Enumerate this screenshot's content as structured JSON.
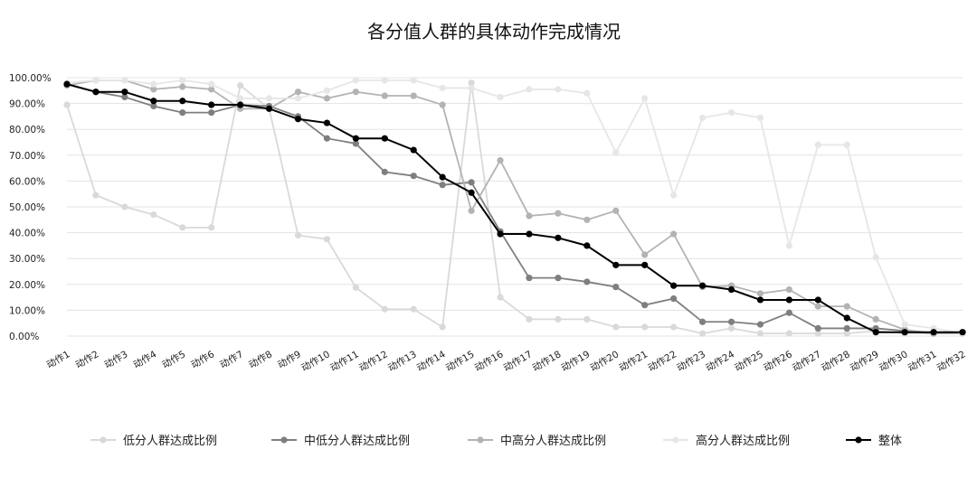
{
  "chart_data": {
    "type": "line",
    "title": "各分值人群的具体动作完成情况",
    "xlabel": "",
    "ylabel": "",
    "ylim": [
      0,
      100
    ],
    "yticks": [
      "0.00%",
      "10.00%",
      "20.00%",
      "30.00%",
      "40.00%",
      "50.00%",
      "60.00%",
      "70.00%",
      "80.00%",
      "90.00%",
      "100.00%"
    ],
    "grid": true,
    "legend_position": "bottom",
    "categories": [
      "动作1",
      "动作2",
      "动作3",
      "动作4",
      "动作5",
      "动作6",
      "动作7",
      "动作8",
      "动作9",
      "动作10",
      "动作11",
      "动作12",
      "动作13",
      "动作14",
      "动作15",
      "动作16",
      "动作17",
      "动作18",
      "动作19",
      "动作20",
      "动作21",
      "动作22",
      "动作23",
      "动作24",
      "动作25",
      "动作26",
      "动作27",
      "动作28",
      "动作29",
      "动作30",
      "动作31",
      "动作32"
    ],
    "series": [
      {
        "name": "低分人群达成比例",
        "color": "#d9d9d9",
        "values": [
          89.5,
          54.5,
          50,
          47,
          42,
          42,
          97,
          88,
          39,
          37.5,
          18.8,
          10.4,
          10.4,
          3.5,
          98,
          15,
          6.5,
          6.5,
          6.5,
          3.5,
          3.5,
          3.5,
          1,
          3,
          1,
          1,
          1,
          1,
          2,
          1,
          1,
          1
        ]
      },
      {
        "name": "中低分人群达成比例",
        "color": "#7f7f7f",
        "values": [
          97.5,
          94.5,
          92.5,
          89,
          86.5,
          86.5,
          89.5,
          89,
          85,
          76.5,
          74.5,
          63.5,
          62,
          58.5,
          59.5,
          40.5,
          22.5,
          22.5,
          21,
          19,
          12,
          14.5,
          5.5,
          5.5,
          4.5,
          9,
          3,
          3,
          3,
          2,
          1,
          1
        ]
      },
      {
        "name": "中高分人群达成比例",
        "color": "#b3b3b3",
        "values": [
          97,
          99,
          99,
          95.5,
          96.5,
          95.5,
          88,
          88,
          94.5,
          92,
          94.5,
          93,
          93,
          89.5,
          48.5,
          68,
          46.5,
          47.5,
          45,
          48.5,
          31.5,
          39.5,
          19,
          19.5,
          16.5,
          18,
          11.5,
          11.5,
          6.5,
          2.5,
          1,
          1
        ]
      },
      {
        "name": "高分人群达成比例",
        "color": "#e6e6e6",
        "values": [
          98,
          99,
          99,
          97.5,
          99,
          97.5,
          92,
          92,
          92,
          95,
          99,
          99,
          99,
          96,
          96,
          92.5,
          95.5,
          95.5,
          94,
          71,
          92,
          54.5,
          84.5,
          86.5,
          84.5,
          35,
          74,
          74,
          30.5,
          4.5,
          3,
          1
        ]
      },
      {
        "name": "整体",
        "color": "#000000",
        "values": [
          97.5,
          94.5,
          94.5,
          91,
          91,
          89.5,
          89.5,
          88,
          84,
          82.5,
          76.5,
          76.5,
          72,
          61.5,
          55.5,
          39.5,
          39.5,
          38,
          35,
          27.5,
          27.5,
          19.5,
          19.5,
          18,
          14,
          14,
          14,
          7,
          1.5,
          1.5,
          1.5,
          1.5
        ]
      }
    ]
  }
}
